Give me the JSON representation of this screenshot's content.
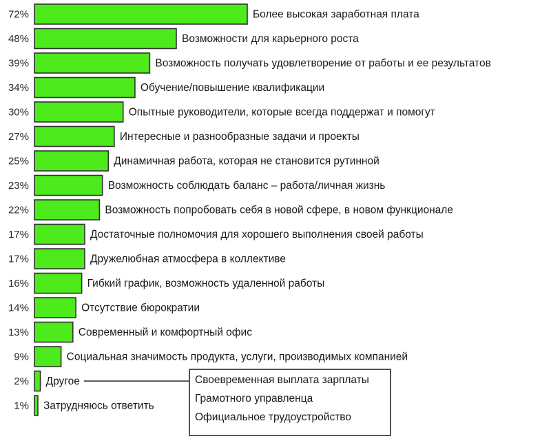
{
  "chart_data": {
    "type": "bar",
    "orientation": "horizontal",
    "unit": "%",
    "color": "#4dea1c",
    "categories": [
      "Более высокая заработная плата",
      "Возможности для карьерного роста",
      "Возможность получать удовлетворение от работы и ее результатов",
      "Обучение/повышение квалификации",
      "Опытные руководители, которые всегда поддержат и помогут",
      "Интересные и разнообразные задачи и проекты",
      "Динамичная работа, которая не становится рутинной",
      "Возможность соблюдать баланс – работа/личная жизнь",
      "Возможность попробовать себя в новой сфере, в новом функционале",
      "Достаточные полномочия для хорошего выполнения своей работы",
      "Дружелюбная атмосфера в коллективе",
      "Гибкий график, возможность удаленной работы",
      "Отсутствие бюрократии",
      "Современный и комфортный офис",
      "Социальная значимость продукта, услуги, производимых компанией",
      "Другое",
      "Затрудняюсь ответить"
    ],
    "values": [
      72,
      48,
      39,
      34,
      30,
      27,
      25,
      23,
      22,
      17,
      17,
      16,
      14,
      13,
      9,
      2,
      1
    ],
    "value_labels": [
      "72%",
      "48%",
      "39%",
      "34%",
      "30%",
      "27%",
      "25%",
      "23%",
      "22%",
      "17%",
      "17%",
      "16%",
      "14%",
      "13%",
      "9%",
      "2%",
      "1%"
    ],
    "callout": {
      "attached_to": "Другое",
      "items": [
        "Своевременная выплата зарплаты",
        "Грамотного управленца",
        "Официальное трудоустройство"
      ]
    }
  }
}
